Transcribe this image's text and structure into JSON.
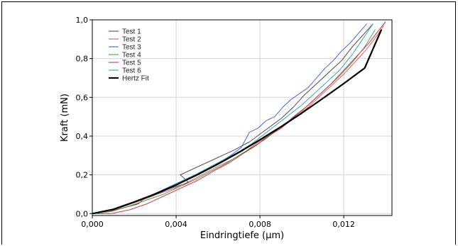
{
  "chart_data": {
    "type": "line",
    "xlabel": "Eindringtiefe (µm)",
    "ylabel": "Kraft (mN)",
    "xlim": [
      0,
      0.0143
    ],
    "ylim": [
      -0.01,
      1.0
    ],
    "xticks": [
      "0,000",
      "0,004",
      "0,008",
      "0,012"
    ],
    "xtick_values": [
      0,
      0.004,
      0.008,
      0.012
    ],
    "yticks": [
      "0,0",
      "0,2",
      "0,4",
      "0,6",
      "0,8",
      "1,0"
    ],
    "ytick_values": [
      0,
      0.2,
      0.4,
      0.6,
      0.8,
      1.0
    ],
    "grid": true,
    "legend_position": "top-left",
    "series": [
      {
        "name": "Test 1",
        "color": "#3c3c3c",
        "x": [
          0.0,
          0.0008,
          0.0015,
          0.0022,
          0.0025,
          0.0032,
          0.004,
          0.0046,
          0.0042,
          0.005,
          0.0058,
          0.0064,
          0.0068,
          0.0075,
          0.008,
          0.0085,
          0.009,
          0.0096,
          0.0101,
          0.0106,
          0.011,
          0.0114,
          0.0119,
          0.0124,
          0.0129,
          0.0134
        ],
        "y": [
          0.0,
          0.01,
          0.03,
          0.05,
          0.08,
          0.11,
          0.14,
          0.16,
          0.2,
          0.24,
          0.28,
          0.31,
          0.33,
          0.37,
          0.41,
          0.45,
          0.49,
          0.55,
          0.61,
          0.66,
          0.7,
          0.74,
          0.79,
          0.86,
          0.92,
          0.98
        ]
      },
      {
        "name": "Test 2",
        "color": "#e04a4a",
        "x": [
          0.0,
          0.0008,
          0.0016,
          0.0024,
          0.0031,
          0.0039,
          0.0047,
          0.0054,
          0.0061,
          0.0067,
          0.0073,
          0.0078,
          0.0084,
          0.009,
          0.0096,
          0.0102,
          0.0108,
          0.0114,
          0.012,
          0.0126,
          0.0131,
          0.0136,
          0.0139
        ],
        "y": [
          0.0,
          0.01,
          0.04,
          0.07,
          0.1,
          0.13,
          0.17,
          0.21,
          0.25,
          0.28,
          0.32,
          0.36,
          0.4,
          0.44,
          0.49,
          0.54,
          0.6,
          0.66,
          0.72,
          0.79,
          0.85,
          0.92,
          0.97
        ]
      },
      {
        "name": "Test 3",
        "color": "#3a55d8",
        "x": [
          0.0,
          0.0009,
          0.0017,
          0.0025,
          0.0033,
          0.0041,
          0.0048,
          0.0054,
          0.006,
          0.0066,
          0.0071,
          0.0075,
          0.0079,
          0.0083,
          0.0087,
          0.0091,
          0.0095,
          0.0099,
          0.0103,
          0.0107,
          0.0111,
          0.0115,
          0.0119,
          0.0123,
          0.0127,
          0.0131
        ],
        "y": [
          0.0,
          0.02,
          0.05,
          0.08,
          0.11,
          0.15,
          0.19,
          0.22,
          0.26,
          0.3,
          0.34,
          0.42,
          0.44,
          0.48,
          0.5,
          0.55,
          0.59,
          0.62,
          0.65,
          0.7,
          0.75,
          0.79,
          0.84,
          0.88,
          0.93,
          0.98
        ]
      },
      {
        "name": "Test 4",
        "color": "#2e9b3c",
        "x": [
          0.0,
          0.0009,
          0.0018,
          0.0026,
          0.0034,
          0.0042,
          0.005,
          0.0057,
          0.0064,
          0.007,
          0.0076,
          0.0082,
          0.0088,
          0.0094,
          0.01,
          0.0106,
          0.0112,
          0.0118,
          0.0124,
          0.013,
          0.0135
        ],
        "y": [
          0.0,
          0.01,
          0.04,
          0.07,
          0.1,
          0.14,
          0.18,
          0.22,
          0.26,
          0.3,
          0.34,
          0.38,
          0.43,
          0.48,
          0.53,
          0.59,
          0.65,
          0.71,
          0.78,
          0.86,
          0.95
        ]
      },
      {
        "name": "Test 5",
        "color": "#c8283c",
        "x": [
          0.0,
          0.0009,
          0.0018,
          0.0026,
          0.0034,
          0.0042,
          0.005,
          0.0058,
          0.0065,
          0.0072,
          0.0078,
          0.0084,
          0.009,
          0.0096,
          0.0102,
          0.0108,
          0.0114,
          0.012,
          0.0126,
          0.0132,
          0.0137,
          0.014
        ],
        "y": [
          0.0,
          0.0,
          0.02,
          0.05,
          0.09,
          0.13,
          0.17,
          0.22,
          0.26,
          0.31,
          0.35,
          0.4,
          0.44,
          0.5,
          0.55,
          0.61,
          0.67,
          0.74,
          0.81,
          0.88,
          0.95,
          0.99
        ]
      },
      {
        "name": "Test 6",
        "color": "#2a9aa8",
        "x": [
          0.0,
          0.0009,
          0.0017,
          0.0025,
          0.0033,
          0.0041,
          0.0049,
          0.0056,
          0.0063,
          0.007,
          0.0076,
          0.0082,
          0.0088,
          0.0094,
          0.01,
          0.0106,
          0.0112,
          0.0118,
          0.0124,
          0.0129,
          0.0134
        ],
        "y": [
          0.0,
          0.02,
          0.05,
          0.08,
          0.12,
          0.16,
          0.2,
          0.24,
          0.28,
          0.32,
          0.36,
          0.41,
          0.46,
          0.51,
          0.56,
          0.62,
          0.68,
          0.74,
          0.82,
          0.9,
          0.98
        ]
      },
      {
        "name": "Hertz Fit",
        "color": "#000000",
        "x": [
          0.0,
          0.001,
          0.002,
          0.003,
          0.004,
          0.005,
          0.006,
          0.007,
          0.008,
          0.009,
          0.01,
          0.011,
          0.012,
          0.013,
          0.0138
        ],
        "y": [
          0.0,
          0.022,
          0.06,
          0.101,
          0.148,
          0.2,
          0.256,
          0.316,
          0.381,
          0.448,
          0.519,
          0.594,
          0.671,
          0.751,
          0.95
        ]
      }
    ]
  }
}
